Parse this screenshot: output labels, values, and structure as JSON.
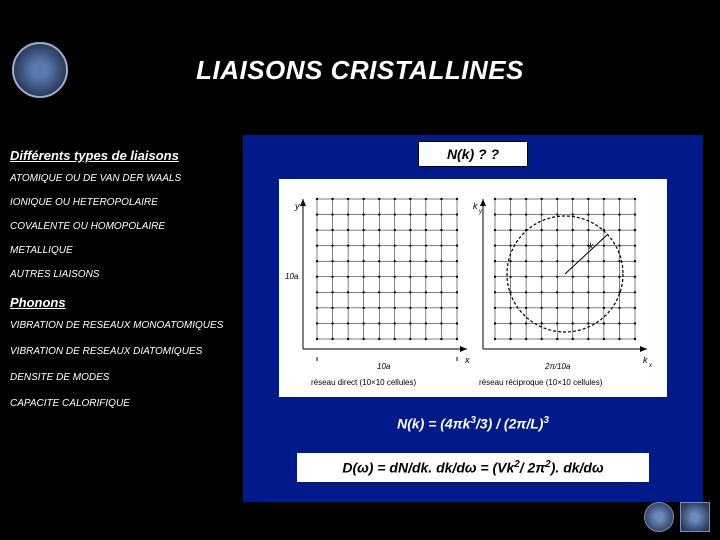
{
  "title": "LIAISONS CRISTALLINES",
  "sidebar": {
    "heading1": "Différents types de liaisons",
    "items1": [
      "ATOMIQUE OU DE VAN DER WAALS",
      "IONIQUE OU HETEROPOLAIRE",
      "COVALENTE OU HOMOPOLAIRE",
      "METALLIQUE",
      "AUTRES LIAISONS"
    ],
    "heading2": "Phonons",
    "items2": [
      "VIBRATION DE RESEAUX MONOATOMIQUES",
      "VIBRATION DE RESEAUX DIATOMIQUES",
      "DENSITE DE MODES",
      "CAPACITE CALORIFIQUE"
    ]
  },
  "panel": {
    "nk_label": "N(k) ? ?",
    "eq1_html": "N(k) = (4πk<sup>3</sup>/3) / (2π/L)<sup>3</sup>",
    "eq2_html": "D(ω) = dN/dk. dk/dω = (Vk<sup>2</sup>/ 2π<sup>2</sup>). dk/dω",
    "background_color": "#001a8a",
    "figure": {
      "left_caption": "réseau direct (10×10 cellules)",
      "right_caption": "réseau réciproque (10×10 cellules)",
      "grid_size": 10,
      "circle_present": true,
      "stroke_color": "#000000",
      "bg_color": "#ffffff"
    }
  },
  "colors": {
    "page_bg": "#000000",
    "text": "#ffffff",
    "panel_bg": "#001a8a"
  }
}
